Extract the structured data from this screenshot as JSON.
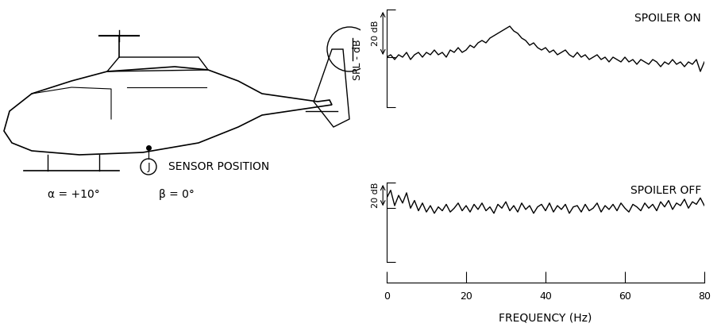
{
  "chart_data": [
    {
      "type": "line",
      "title": "SPOILER ON",
      "color": "#000000",
      "x": [
        0,
        1,
        2,
        3,
        4,
        5,
        6,
        7,
        8,
        9,
        10,
        11,
        12,
        13,
        14,
        15,
        16,
        17,
        18,
        19,
        20,
        21,
        22,
        23,
        24,
        25,
        26,
        27,
        28,
        29,
        30,
        31,
        32,
        33,
        34,
        35,
        36,
        37,
        38,
        39,
        40,
        41,
        42,
        43,
        44,
        45,
        46,
        47,
        48,
        49,
        50,
        51,
        52,
        53,
        54,
        55,
        56,
        57,
        58,
        59,
        60,
        61,
        62,
        63,
        64,
        65,
        66,
        67,
        68,
        69,
        70,
        71,
        72,
        73,
        74,
        75,
        76,
        77,
        78,
        79,
        80
      ],
      "values": [
        0,
        1,
        -1,
        1,
        0,
        2,
        -1,
        1,
        2,
        0,
        2,
        1,
        3,
        1,
        2,
        0,
        3,
        2,
        4,
        2,
        3,
        5,
        4,
        6,
        7,
        6,
        8,
        9,
        10,
        11,
        12,
        13,
        11,
        10,
        8,
        7,
        5,
        6,
        4,
        3,
        4,
        2,
        3,
        1,
        2,
        3,
        1,
        0,
        2,
        0,
        1,
        -1,
        0,
        1,
        -1,
        0,
        -2,
        0,
        -1,
        -2,
        0,
        -2,
        -1,
        -3,
        -1,
        -2,
        -3,
        -1,
        -2,
        -4,
        -2,
        -3,
        -1,
        -3,
        -2,
        -4,
        -2,
        -3,
        -1,
        -6,
        -2
      ],
      "xlim": [
        0,
        80
      ],
      "ylim": [
        -21,
        20
      ],
      "yticks": [
        -21,
        0,
        20
      ],
      "tick_labels": false,
      "scale_bar": 20,
      "scale_bar_label": "20 dB"
    },
    {
      "type": "line",
      "title": "SPOILER OFF",
      "color": "#000000",
      "x": [
        0,
        1,
        2,
        3,
        4,
        5,
        6,
        7,
        8,
        9,
        10,
        11,
        12,
        13,
        14,
        15,
        16,
        17,
        18,
        19,
        20,
        21,
        22,
        23,
        24,
        25,
        26,
        27,
        28,
        29,
        30,
        31,
        32,
        33,
        34,
        35,
        36,
        37,
        38,
        39,
        40,
        41,
        42,
        43,
        44,
        45,
        46,
        47,
        48,
        49,
        50,
        51,
        52,
        53,
        54,
        55,
        56,
        57,
        58,
        59,
        60,
        61,
        62,
        63,
        64,
        65,
        66,
        67,
        68,
        69,
        70,
        71,
        72,
        73,
        74,
        75,
        76,
        77,
        78,
        79,
        80
      ],
      "values": [
        8,
        14,
        2,
        10,
        4,
        12,
        0,
        6,
        -2,
        4,
        -3,
        2,
        -4,
        1,
        -2,
        3,
        -3,
        0,
        4,
        -2,
        2,
        -3,
        3,
        -1,
        4,
        -2,
        1,
        -4,
        3,
        0,
        5,
        -2,
        2,
        -3,
        4,
        -1,
        2,
        -4,
        1,
        3,
        -2,
        4,
        -3,
        2,
        -1,
        3,
        -4,
        1,
        2,
        -3,
        3,
        -2,
        0,
        4,
        -3,
        2,
        -1,
        3,
        -2,
        4,
        0,
        -3,
        3,
        1,
        -2,
        4,
        0,
        3,
        -2,
        5,
        1,
        6,
        -1,
        4,
        2,
        7,
        0,
        5,
        3,
        8,
        2
      ],
      "xlim": [
        0,
        80
      ],
      "ylim": [
        -42,
        20
      ],
      "yticks": [
        -42,
        0,
        20
      ],
      "tick_labels": false,
      "scale_bar": 20,
      "scale_bar_label": "20 dB"
    }
  ],
  "ylabel": "SPL - dB",
  "frequency_axis": {
    "xlabel": "FREQUENCY (Hz)",
    "xlim": [
      0,
      80
    ],
    "xticks": [
      0,
      20,
      40,
      60,
      80
    ]
  },
  "diagram": {
    "sensor_id": "J",
    "sensor_label": "SENSOR POSITION",
    "alpha": "α = +10°",
    "beta": "β = 0°"
  }
}
